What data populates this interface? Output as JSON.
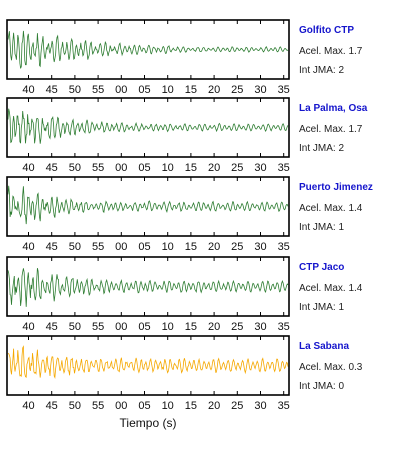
{
  "chart_data": {
    "type": "line",
    "xlabel": "Tiempo (s)",
    "x_ticks": [
      "40",
      "45",
      "50",
      "55",
      "00",
      "05",
      "10",
      "15",
      "20",
      "25",
      "30",
      "35"
    ],
    "stations": [
      {
        "name": "Golfito CTP",
        "accel_label": "Acel. Max. 1.7",
        "jma_label": "Int JMA: 2",
        "peak": 1.7,
        "jma": 2,
        "color": "#2e7d32"
      },
      {
        "name": "La Palma, Osa",
        "accel_label": "Acel. Max. 1.7",
        "jma_label": "Int JMA: 2",
        "peak": 1.7,
        "jma": 2,
        "color": "#2e7d32"
      },
      {
        "name": "Puerto Jimenez",
        "accel_label": "Acel. Max. 1.4",
        "jma_label": "Int JMA: 1",
        "peak": 1.4,
        "jma": 1,
        "color": "#2e7d32"
      },
      {
        "name": "CTP Jaco",
        "accel_label": "Acel. Max. 1.4",
        "jma_label": "Int JMA: 1",
        "peak": 1.4,
        "jma": 1,
        "color": "#2e7d32"
      },
      {
        "name": "La Sabana",
        "accel_label": "Acel. Max. 0.3",
        "jma_label": "Int JMA: 0",
        "peak": 0.3,
        "jma": 0,
        "color": "#f5a800"
      }
    ]
  }
}
